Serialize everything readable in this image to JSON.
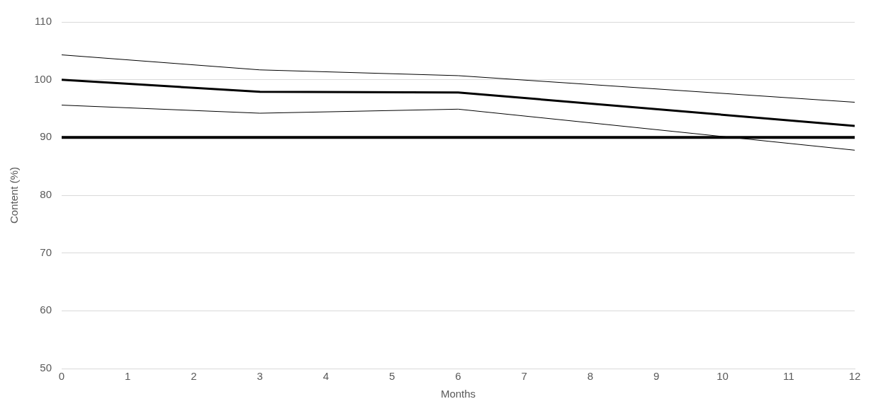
{
  "chart_data": {
    "type": "line",
    "xlabel": "Months",
    "ylabel": "Content (%)",
    "x": [
      0,
      3,
      6,
      12
    ],
    "series": [
      {
        "color": "#000000",
        "values": [
          104.3,
          101.7,
          100.7,
          96.1
        ]
      },
      {
        "color": "#000000",
        "values": [
          100,
          97.9,
          97.8,
          92
        ]
      },
      {
        "color": "#000000",
        "values": [
          95.6,
          94.2,
          94.9,
          87.8
        ]
      }
    ],
    "xlim": [
      0,
      12
    ],
    "xticks": [
      0,
      1,
      2,
      3,
      4,
      5,
      6,
      7,
      8,
      9,
      10,
      11,
      12
    ],
    "ylim": [
      50,
      110
    ],
    "yticks": [
      50,
      60,
      70,
      80,
      90,
      100,
      110
    ],
    "ref_lines": [
      {
        "axis": "y",
        "value": 90,
        "color": "#000000"
      }
    ],
    "grid": "y",
    "marker": "none",
    "line_style": "solid"
  }
}
